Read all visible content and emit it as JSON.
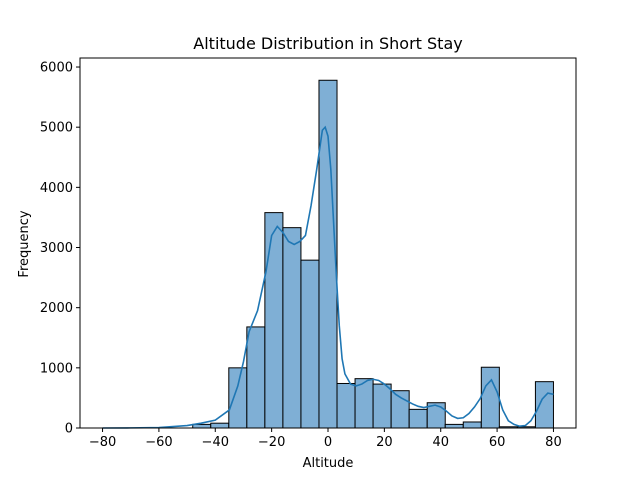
{
  "chart_data": {
    "type": "histogram",
    "title": "Altitude Distribution in Short Stay",
    "xlabel": "Altitude",
    "ylabel": "Frequency",
    "xlim": [
      -88,
      88
    ],
    "ylim": [
      0,
      6150
    ],
    "xticks": [
      -80,
      -60,
      -40,
      -20,
      0,
      20,
      40,
      60,
      80
    ],
    "yticks": [
      0,
      1000,
      2000,
      3000,
      4000,
      5000,
      6000
    ],
    "grid": false,
    "colors": {
      "bar_fill": "#7fafd5",
      "bar_edge": "#000000",
      "kde_line": "#1f77b4"
    },
    "bins": [
      {
        "x0": -48.0,
        "x1": -41.6,
        "count": 60
      },
      {
        "x0": -41.6,
        "x1": -35.2,
        "count": 80
      },
      {
        "x0": -35.2,
        "x1": -28.8,
        "count": 1000
      },
      {
        "x0": -28.8,
        "x1": -22.4,
        "count": 1680
      },
      {
        "x0": -22.4,
        "x1": -16.0,
        "count": 3580
      },
      {
        "x0": -16.0,
        "x1": -9.6,
        "count": 3330
      },
      {
        "x0": -9.6,
        "x1": -3.2,
        "count": 2790
      },
      {
        "x0": -3.2,
        "x1": 3.2,
        "count": 5780
      },
      {
        "x0": 3.2,
        "x1": 9.6,
        "count": 740
      },
      {
        "x0": 9.6,
        "x1": 16.0,
        "count": 820
      },
      {
        "x0": 16.0,
        "x1": 22.4,
        "count": 730
      },
      {
        "x0": 22.4,
        "x1": 28.8,
        "count": 620
      },
      {
        "x0": 28.8,
        "x1": 35.2,
        "count": 310
      },
      {
        "x0": 35.2,
        "x1": 41.6,
        "count": 420
      },
      {
        "x0": 41.6,
        "x1": 48.0,
        "count": 60
      },
      {
        "x0": 48.0,
        "x1": 54.4,
        "count": 100
      },
      {
        "x0": 54.4,
        "x1": 60.8,
        "count": 1010
      },
      {
        "x0": 60.8,
        "x1": 67.2,
        "count": 20
      },
      {
        "x0": 67.2,
        "x1": 73.6,
        "count": 20
      },
      {
        "x0": 73.6,
        "x1": 80.0,
        "count": 770
      }
    ],
    "kde": {
      "x": [
        -80,
        -70,
        -60,
        -50,
        -45,
        -40,
        -35,
        -32,
        -30,
        -28,
        -25,
        -22,
        -20,
        -18,
        -16,
        -14,
        -12,
        -10,
        -8,
        -6,
        -4,
        -2,
        -1,
        0,
        1,
        2,
        3,
        4,
        5,
        6,
        8,
        10,
        12,
        14,
        16,
        18,
        20,
        22,
        24,
        26,
        28,
        30,
        32,
        34,
        36,
        38,
        40,
        42,
        44,
        46,
        48,
        50,
        52,
        54,
        56,
        58,
        60,
        62,
        64,
        66,
        68,
        70,
        72,
        74,
        76,
        78,
        80
      ],
      "y": [
        0,
        2,
        8,
        40,
        80,
        130,
        300,
        700,
        1100,
        1600,
        1950,
        2600,
        3200,
        3350,
        3250,
        3100,
        3050,
        3100,
        3200,
        3700,
        4300,
        4950,
        5000,
        4850,
        4300,
        3400,
        2500,
        1700,
        1150,
        900,
        730,
        700,
        730,
        790,
        810,
        790,
        730,
        650,
        560,
        500,
        450,
        400,
        360,
        340,
        360,
        380,
        350,
        280,
        200,
        160,
        170,
        240,
        350,
        490,
        700,
        800,
        600,
        300,
        120,
        60,
        30,
        40,
        120,
        280,
        480,
        580,
        560
      ]
    }
  }
}
